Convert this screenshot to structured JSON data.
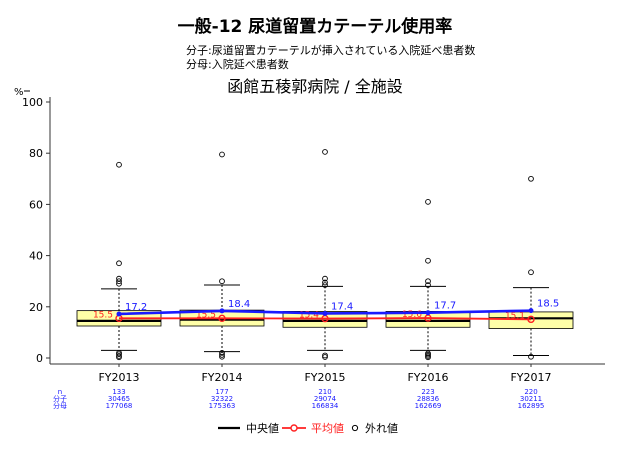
{
  "title": "一般-12 尿道留置カテーテル使用率",
  "definition": {
    "numerator": "分子:尿道留置カテーテルが挿入されている入院延べ患者数",
    "denominator": "分母:入院延べ患者数"
  },
  "subtitle": "函館五稜郭病院 / 全施設",
  "colors": {
    "box_fill": "#ffffa8",
    "median": "#000000",
    "hospital_line": "#1a1aff",
    "mean": "#ff2020",
    "outlier": "#000000",
    "stats_text": "#1a1aff"
  },
  "legend": {
    "median": "中央値",
    "mean": "平均値",
    "outlier": "外れ値"
  },
  "stats_labels": {
    "n": "n",
    "numerator": "分子",
    "denominator": "分母"
  },
  "chart_data": {
    "type": "box",
    "ylabel": "%",
    "ylim": [
      0,
      100
    ],
    "yticks": [
      0,
      20,
      40,
      60,
      80,
      100
    ],
    "categories": [
      "FY2013",
      "FY2014",
      "FY2015",
      "FY2016",
      "FY2017"
    ],
    "boxes": [
      {
        "lower_whisker": 3,
        "q1": 12.5,
        "median": 14.5,
        "q3": 18.5,
        "upper_whisker": 27,
        "mean": 15.5,
        "mean_label": "15.5",
        "outliers": [
          0.3,
          0.8,
          1.5,
          2,
          29,
          30,
          31,
          37,
          75.5
        ]
      },
      {
        "lower_whisker": 2.5,
        "q1": 12.5,
        "median": 15,
        "q3": 18.7,
        "upper_whisker": 28.5,
        "mean": 15.5,
        "mean_label": "15.5",
        "outliers": [
          0.5,
          1.2,
          2,
          30,
          79.5
        ]
      },
      {
        "lower_whisker": 3,
        "q1": 12,
        "median": 14.5,
        "q3": 18.2,
        "upper_whisker": 28,
        "mean": 15.4,
        "mean_label": "15.4",
        "outliers": [
          0.4,
          1,
          28.5,
          29.5,
          31,
          80.5
        ]
      },
      {
        "lower_whisker": 3,
        "q1": 12,
        "median": 14.5,
        "q3": 18.2,
        "upper_whisker": 28,
        "mean": 15.6,
        "mean_label": "15.6",
        "outliers": [
          0.3,
          0.8,
          1.3,
          1.8,
          28.5,
          30,
          38,
          61
        ]
      },
      {
        "lower_whisker": 1,
        "q1": 11.5,
        "median": 15.5,
        "q3": 18,
        "upper_whisker": 27.5,
        "mean": 15.1,
        "mean_label": "15.1",
        "outliers": [
          0.5,
          33.5,
          70
        ]
      }
    ],
    "hospital_series": {
      "values": [
        17.2,
        18.4,
        17.4,
        17.7,
        18.5
      ],
      "labels": [
        "17.2",
        "18.4",
        "17.4",
        "17.7",
        "18.5"
      ]
    },
    "table": {
      "n": [
        "133",
        "177",
        "210",
        "223",
        "220"
      ],
      "numerator": [
        "30465",
        "32322",
        "29074",
        "28836",
        "30211"
      ],
      "denominator": [
        "177068",
        "175363",
        "166834",
        "162669",
        "162895"
      ]
    }
  }
}
